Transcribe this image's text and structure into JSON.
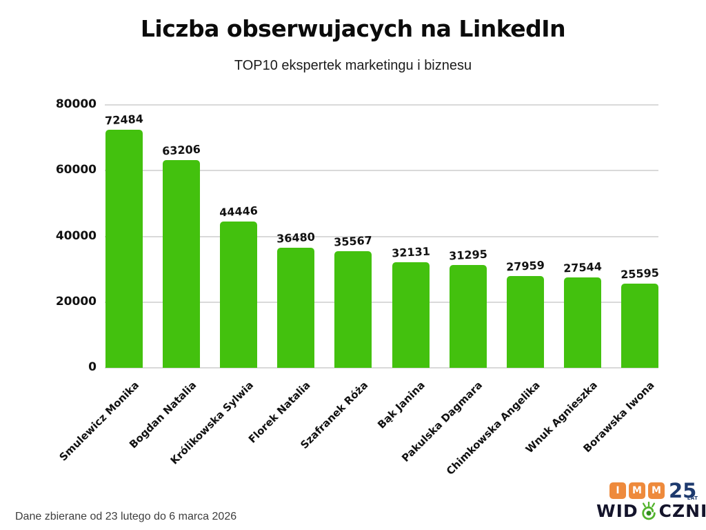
{
  "page": {
    "title": "Liczba obserwujacych na LinkedIn",
    "subtitle": "TOP10 ekspertek marketingu i biznesu",
    "footnote": "Dane zbierane od 23 lutego do 6 marca 2026"
  },
  "chart_data": {
    "type": "bar",
    "title": "Liczba obserwujacych na LinkedIn",
    "subtitle": "TOP10 ekspertek marketingu i biznesu",
    "categories": [
      "Smulewicz Monika",
      "Bogdan Natalia",
      "Królikowska Sylwia",
      "Florek Natalia",
      "Szafranek Róża",
      "Bąk Janina",
      "Pakulska Dagmara",
      "Chimkowska Angelika",
      "Wnuk Agnieszka",
      "Borawska Iwona"
    ],
    "values": [
      72484,
      63206,
      44446,
      36480,
      35567,
      32131,
      31295,
      27959,
      27544,
      25595
    ],
    "xlabel": "",
    "ylabel": "",
    "ylim": [
      0,
      80000
    ],
    "yticks": [
      0,
      20000,
      40000,
      60000,
      80000
    ],
    "grid": true,
    "legend_position": "none",
    "value_labels": true,
    "bar_color": "#43C10E",
    "gridline_color": "#d9d9d9",
    "label_color": "#111111"
  },
  "branding": {
    "imm": {
      "blocks": [
        "I",
        "M",
        "M"
      ],
      "years": "25",
      "years_unit": "LAT",
      "block_color": "#EE8A3C",
      "text_color": "#1E3A6E"
    },
    "widoczni": {
      "prefix": "WID",
      "suffix": "CZNI",
      "text_color": "#14142B",
      "eye_color": "#52B32C",
      "eye_pupil_color": "#2F8C1D"
    }
  }
}
